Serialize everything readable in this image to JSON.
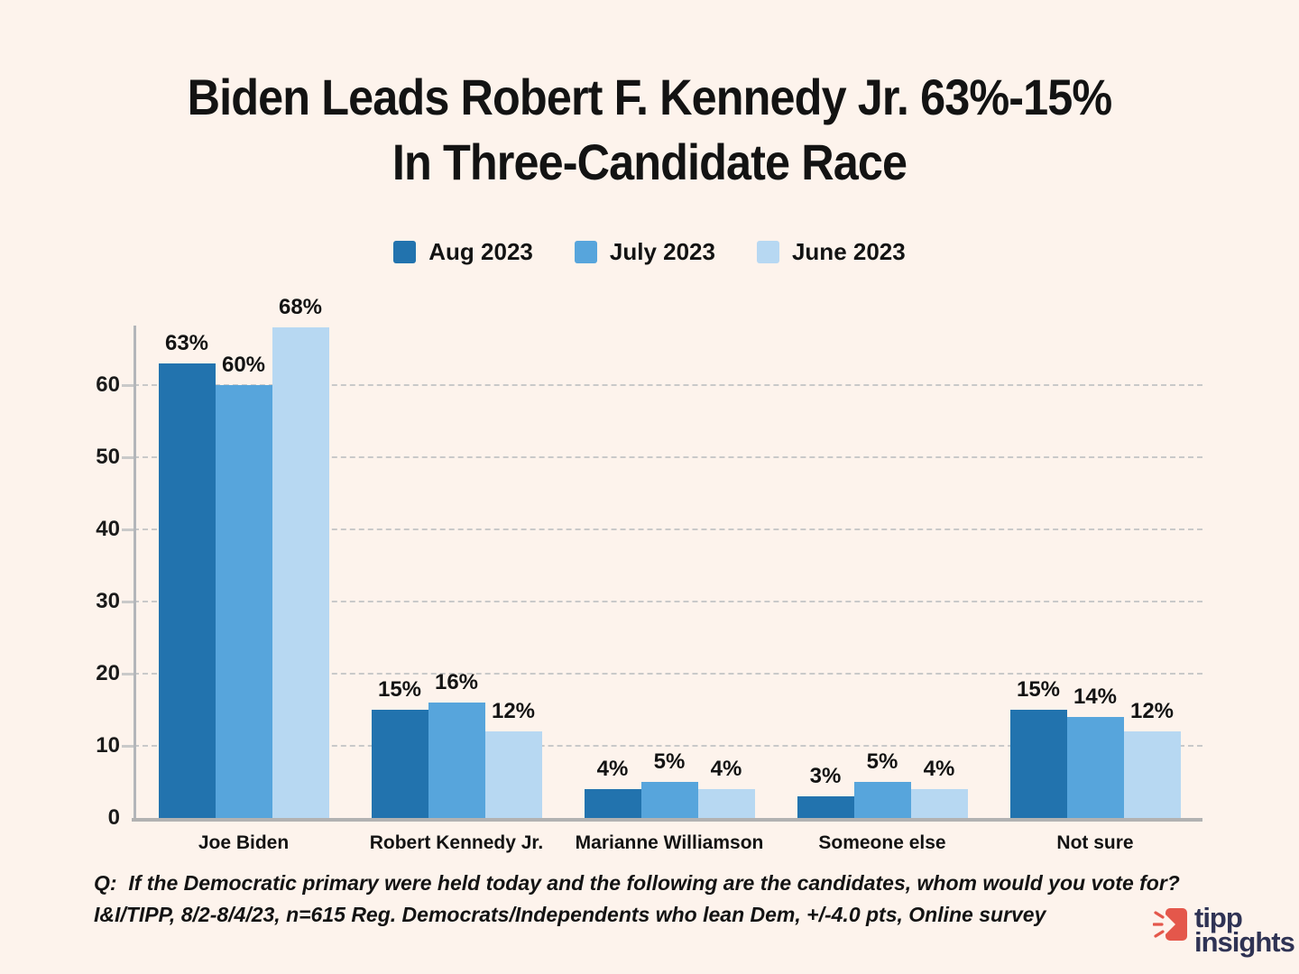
{
  "title": {
    "line1": "Biden Leads Robert F. Kennedy Jr. 63%-15%",
    "line2": "In Three-Candidate Race"
  },
  "chart_data": {
    "type": "bar",
    "title": "Biden Leads Robert F. Kennedy Jr. 63%-15% In Three-Candidate Race",
    "categories": [
      "Joe Biden",
      "Robert Kennedy Jr.",
      "Marianne Williamson",
      "Someone else",
      "Not sure"
    ],
    "series": [
      {
        "name": "Aug 2023",
        "color": "#2273AE",
        "values": [
          63,
          15,
          4,
          3,
          15
        ]
      },
      {
        "name": "July 2023",
        "color": "#57A5DC",
        "values": [
          60,
          16,
          5,
          5,
          14
        ]
      },
      {
        "name": "June 2023",
        "color": "#B7D8F2",
        "values": [
          68,
          12,
          4,
          4,
          12
        ]
      }
    ],
    "value_suffix": "%",
    "xlabel": "",
    "ylabel": "",
    "ylim": [
      0,
      68
    ],
    "yticks": [
      0,
      10,
      20,
      30,
      40,
      50,
      60
    ],
    "grid": "horizontal-dashed",
    "legend_position": "top"
  },
  "footer": {
    "question": "Q:  If the Democratic primary were held today and the following are the candidates, whom would you vote for?",
    "source": "I&I/TIPP, 8/2-8/4/23, n=615 Reg. Democrats/Independents who lean Dem, +/-4.0 pts, Online survey"
  },
  "logo": {
    "line1": "tipp",
    "line2": "insights",
    "icon": "megaphone-icon",
    "icon_color": "#E4574B",
    "text_color": "#2F3354"
  },
  "colors": {
    "background": "#FDF3EC",
    "text": "#131313",
    "gridline": "#C9C9C9",
    "axis": "#B2B2B2"
  }
}
